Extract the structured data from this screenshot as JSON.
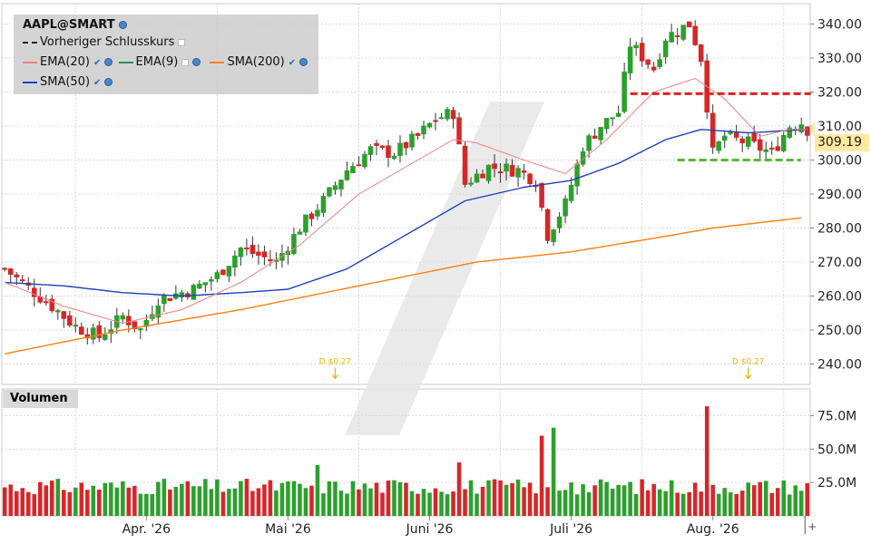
{
  "legend": {
    "symbol": "AAPL@SMART",
    "prev_close": "Vorheriger Schlusskurs",
    "ema20": "EMA(20)",
    "ema9": "EMA(9)",
    "sma200": "SMA(200)",
    "sma50": "SMA(50)"
  },
  "volume_label": "Volumen",
  "last_price": "309.19",
  "colors": {
    "up": "#2ca02c",
    "down": "#d62728",
    "ema20": "#f08080",
    "ema9": "#2e8b57",
    "sma200": "#ff7f0e",
    "sma50": "#1f3fbf",
    "resistance": "#e02020",
    "support": "#55bb33",
    "dividend": "#e8b400"
  },
  "chart_data": {
    "type": "candlestick",
    "title": "AAPL@SMART",
    "price_ylim": [
      234,
      346
    ],
    "price_ticks": [
      "340.00",
      "330.00",
      "320.00",
      "310.00",
      "300.00",
      "290.00",
      "280.00",
      "270.00",
      "260.00",
      "250.00",
      "240.00"
    ],
    "price_tick_values": [
      340,
      330,
      320,
      310,
      300,
      290,
      280,
      270,
      260,
      250,
      240
    ],
    "volume_ticks": [
      "75.0M",
      "50.0M",
      "25.0M"
    ],
    "volume_tick_values": [
      75,
      50,
      25
    ],
    "volume_ylim": [
      0,
      95
    ],
    "x_labels": [
      "Apr. '26",
      "Mai '26",
      "Juni '26",
      "Juli '26",
      "Aug. '26"
    ],
    "x_label_bar_index": [
      24,
      48,
      72,
      96,
      120
    ],
    "last_price": 309.19,
    "resistance_level": 319.5,
    "support_level": 300.0,
    "dividends": [
      {
        "label": "D $0.27",
        "bar_index": 56
      },
      {
        "label": "D $0.27",
        "bar_index": 126
      }
    ],
    "num_bars": 137,
    "anchors": [
      [
        0,
        268
      ],
      [
        8,
        257
      ],
      [
        12,
        251
      ],
      [
        16,
        248
      ],
      [
        20,
        254
      ],
      [
        23,
        250
      ],
      [
        26,
        259
      ],
      [
        32,
        262
      ],
      [
        36,
        266
      ],
      [
        40,
        274
      ],
      [
        46,
        270
      ],
      [
        50,
        280
      ],
      [
        54,
        288
      ],
      [
        58,
        297
      ],
      [
        62,
        303
      ],
      [
        66,
        302
      ],
      [
        70,
        307
      ],
      [
        73,
        312
      ],
      [
        76,
        314
      ],
      [
        78,
        293
      ],
      [
        82,
        298
      ],
      [
        87,
        297
      ],
      [
        90,
        294
      ],
      [
        92,
        278
      ],
      [
        95,
        287
      ],
      [
        98,
        304
      ],
      [
        101,
        310
      ],
      [
        104,
        314
      ],
      [
        106,
        334
      ],
      [
        110,
        327
      ],
      [
        112,
        336
      ],
      [
        116,
        340
      ],
      [
        118,
        330
      ],
      [
        120,
        302
      ],
      [
        122,
        307
      ],
      [
        126,
        305
      ],
      [
        130,
        302
      ],
      [
        133,
        310
      ],
      [
        135,
        311
      ],
      [
        136,
        309
      ]
    ],
    "volume_spikes": [
      [
        53,
        38
      ],
      [
        77,
        40
      ],
      [
        91,
        60
      ],
      [
        93,
        66
      ],
      [
        119,
        82
      ],
      [
        96,
        25
      ]
    ],
    "ema20_anchors": [
      [
        0,
        264
      ],
      [
        10,
        257
      ],
      [
        20,
        252
      ],
      [
        30,
        256
      ],
      [
        40,
        264
      ],
      [
        50,
        275
      ],
      [
        60,
        290
      ],
      [
        70,
        300
      ],
      [
        76,
        306
      ],
      [
        80,
        305
      ],
      [
        88,
        300
      ],
      [
        95,
        296
      ],
      [
        102,
        306
      ],
      [
        110,
        320
      ],
      [
        117,
        324
      ],
      [
        122,
        318
      ],
      [
        128,
        307
      ],
      [
        133,
        309
      ],
      [
        136,
        309
      ]
    ],
    "ema9_anchors": [],
    "sma50_anchors": [
      [
        0,
        264
      ],
      [
        10,
        263
      ],
      [
        20,
        261
      ],
      [
        30,
        260
      ],
      [
        40,
        261
      ],
      [
        48,
        262
      ],
      [
        58,
        268
      ],
      [
        68,
        278
      ],
      [
        78,
        288
      ],
      [
        88,
        292
      ],
      [
        96,
        294
      ],
      [
        104,
        299
      ],
      [
        112,
        306
      ],
      [
        118,
        309
      ],
      [
        126,
        308
      ],
      [
        136,
        309
      ]
    ],
    "sma200_anchors": [
      [
        0,
        243
      ],
      [
        20,
        250
      ],
      [
        40,
        256
      ],
      [
        60,
        263
      ],
      [
        80,
        270
      ],
      [
        96,
        273
      ],
      [
        110,
        277
      ],
      [
        120,
        280
      ],
      [
        130,
        282
      ],
      [
        135,
        283
      ]
    ]
  }
}
